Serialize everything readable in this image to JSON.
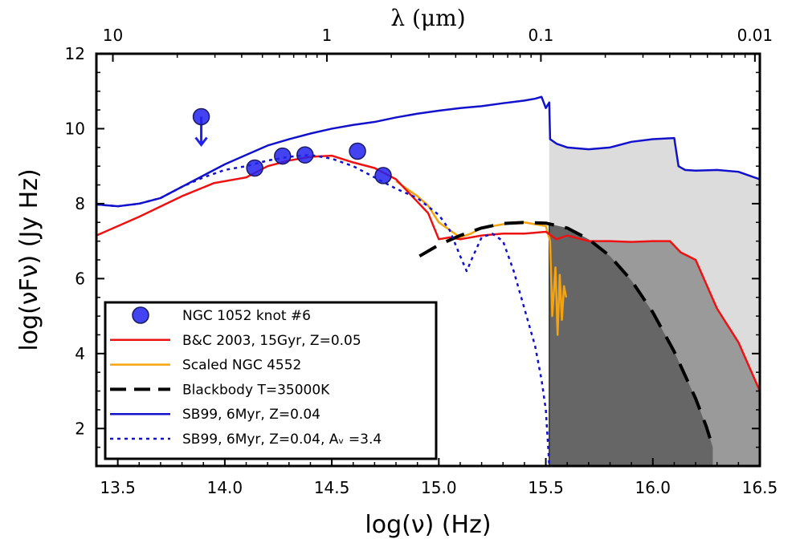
{
  "chart_data": {
    "type": "line",
    "xlabel": "log(ν) (Hz)",
    "ylabel": "log(νFν) (Jy Hz)",
    "top_xlabel": "λ (μm)",
    "xlim": [
      13.4,
      16.5
    ],
    "ylim": [
      1.0,
      12.0
    ],
    "xticks": [
      13.5,
      14.0,
      14.5,
      15.0,
      15.5,
      16.0,
      16.5
    ],
    "xtick_labels": [
      "13.5",
      "14.0",
      "14.5",
      "15.0",
      "15.5",
      "16.0",
      "16.5"
    ],
    "yticks": [
      2,
      4,
      6,
      8,
      10,
      12
    ],
    "ytick_labels": [
      "2",
      "4",
      "6",
      "8",
      "10",
      "12"
    ],
    "top_ticks": [
      {
        "label": "10",
        "log_nu": 13.477
      },
      {
        "label": "1",
        "log_nu": 14.477
      },
      {
        "label": "0.1",
        "log_nu": 15.477
      },
      {
        "label": "0.01",
        "log_nu": 16.477
      }
    ],
    "lyman_limit_log_nu": 15.516,
    "grid": false,
    "legend_position": "lower-left",
    "series": [
      {
        "name": "NGC 1052 knot #6",
        "kind": "points",
        "color": "#2222ee",
        "x": [
          14.14,
          14.27,
          14.375,
          14.62,
          14.74
        ],
        "y": [
          8.95,
          9.27,
          9.3,
          9.4,
          8.75
        ]
      },
      {
        "name": "upper-limit",
        "kind": "upper_limit",
        "color": "#2222ee",
        "x": [
          13.89
        ],
        "y": [
          10.32
        ]
      },
      {
        "name": "B&C 2003, 15Gyr, Z=0.05",
        "kind": "line",
        "color": "#ee1111",
        "style": "solid",
        "x": [
          13.4,
          13.6,
          13.8,
          13.95,
          14.1,
          14.2,
          14.3,
          14.4,
          14.5,
          14.6,
          14.7,
          14.8,
          14.85,
          14.9,
          14.95,
          15.0,
          15.05,
          15.1,
          15.2,
          15.3,
          15.4,
          15.5,
          15.55,
          15.6,
          15.7,
          15.8,
          15.9,
          16.0,
          16.08,
          16.13,
          16.2,
          16.3,
          16.4,
          16.5
        ],
        "y": [
          7.15,
          7.65,
          8.2,
          8.55,
          8.7,
          9.0,
          9.15,
          9.25,
          9.28,
          9.1,
          8.95,
          8.65,
          8.35,
          8.05,
          7.75,
          7.05,
          7.1,
          7.05,
          7.15,
          7.2,
          7.2,
          7.25,
          7.05,
          7.15,
          7.0,
          7.0,
          6.98,
          7.0,
          7.0,
          6.7,
          6.5,
          5.2,
          4.3,
          3.0
        ]
      },
      {
        "name": "Scaled NGC 4552",
        "kind": "line",
        "color": "#f5a410",
        "style": "solid",
        "x": [
          14.8,
          14.85,
          14.9,
          14.95,
          15.0,
          15.05,
          15.1,
          15.15,
          15.2,
          15.25,
          15.3,
          15.35,
          15.4,
          15.45,
          15.5,
          15.52,
          15.53,
          15.545,
          15.555,
          15.565,
          15.575,
          15.585,
          15.595
        ],
        "y": [
          8.6,
          8.4,
          8.2,
          7.95,
          7.5,
          7.3,
          7.1,
          7.2,
          7.35,
          7.4,
          7.45,
          7.5,
          7.5,
          7.45,
          7.4,
          7.0,
          5.0,
          6.3,
          4.5,
          6.1,
          4.9,
          5.8,
          5.5
        ]
      },
      {
        "name": "Blackbody T=35000K",
        "kind": "line",
        "color": "#000000",
        "style": "dashed",
        "x": [
          14.91,
          15.0,
          15.1,
          15.2,
          15.3,
          15.4,
          15.5,
          15.6,
          15.7,
          15.8,
          15.9,
          16.0,
          16.1,
          16.2,
          16.25,
          16.28
        ],
        "y": [
          6.6,
          6.9,
          7.15,
          7.35,
          7.47,
          7.5,
          7.48,
          7.35,
          7.05,
          6.6,
          5.95,
          5.1,
          4.05,
          2.8,
          2.05,
          1.5
        ]
      },
      {
        "name": "SB99, 6Myr, Z=0.04",
        "kind": "line",
        "color": "#1111cc",
        "style": "solid",
        "x": [
          13.4,
          13.5,
          13.6,
          13.7,
          13.8,
          13.9,
          14.0,
          14.1,
          14.2,
          14.3,
          14.4,
          14.5,
          14.6,
          14.7,
          14.8,
          14.9,
          15.0,
          15.1,
          15.2,
          15.3,
          15.4,
          15.45,
          15.48,
          15.5,
          15.516,
          15.52,
          15.55,
          15.6,
          15.7,
          15.8,
          15.9,
          16.0,
          16.1,
          16.12,
          16.15,
          16.2,
          16.3,
          16.4,
          16.5
        ],
        "y": [
          7.98,
          7.93,
          8.0,
          8.15,
          8.45,
          8.75,
          9.05,
          9.3,
          9.55,
          9.72,
          9.87,
          10.0,
          10.1,
          10.18,
          10.3,
          10.4,
          10.48,
          10.55,
          10.6,
          10.68,
          10.75,
          10.8,
          10.85,
          10.55,
          10.7,
          9.72,
          9.6,
          9.5,
          9.45,
          9.5,
          9.65,
          9.72,
          9.75,
          9.0,
          8.9,
          8.88,
          8.9,
          8.85,
          8.65
        ]
      },
      {
        "name": "SB99, 6Myr, Z=0.04, Aᵥ =3.4",
        "kind": "line",
        "color": "#1111cc",
        "style": "dotted",
        "x": [
          13.4,
          13.5,
          13.6,
          13.7,
          13.8,
          13.9,
          14.0,
          14.1,
          14.2,
          14.3,
          14.4,
          14.5,
          14.6,
          14.7,
          14.8,
          14.9,
          15.0,
          15.05,
          15.1,
          15.13,
          15.16,
          15.2,
          15.25,
          15.3,
          15.35,
          15.4,
          15.45,
          15.48,
          15.5,
          15.51,
          15.516
        ],
        "y": [
          7.98,
          7.93,
          8.0,
          8.15,
          8.45,
          8.7,
          8.9,
          9.0,
          9.15,
          9.25,
          9.3,
          9.2,
          9.0,
          8.7,
          8.4,
          8.15,
          7.7,
          7.3,
          6.6,
          6.2,
          6.6,
          7.1,
          7.2,
          7.0,
          6.2,
          5.2,
          4.2,
          3.3,
          2.5,
          1.6,
          1.0
        ]
      }
    ],
    "shaded_regions": [
      {
        "name": "SB99 ionizing region",
        "color": "#dcdcdc"
      },
      {
        "name": "B&C 2003 ionizing region",
        "color": "#9a9a9a"
      },
      {
        "name": "Blackbody ionizing region",
        "color": "#666666"
      }
    ],
    "legend": {
      "entries": [
        {
          "label": "NGC 1052 knot #6",
          "marker": "circle",
          "color": "#2222ee"
        },
        {
          "label": "B&C 2003, 15Gyr, Z=0.05",
          "marker": "line",
          "color": "#ee1111",
          "style": "solid"
        },
        {
          "label": "Scaled NGC 4552",
          "marker": "line",
          "color": "#f5a410",
          "style": "solid"
        },
        {
          "label": "Blackbody T=35000K",
          "marker": "line",
          "color": "#000000",
          "style": "dashed"
        },
        {
          "label": "SB99, 6Myr, Z=0.04",
          "marker": "line",
          "color": "#1111cc",
          "style": "solid"
        },
        {
          "label": "SB99, 6Myr, Z=0.04, Aᵥ =3.4",
          "marker": "line",
          "color": "#1111cc",
          "style": "dotted"
        }
      ]
    }
  }
}
